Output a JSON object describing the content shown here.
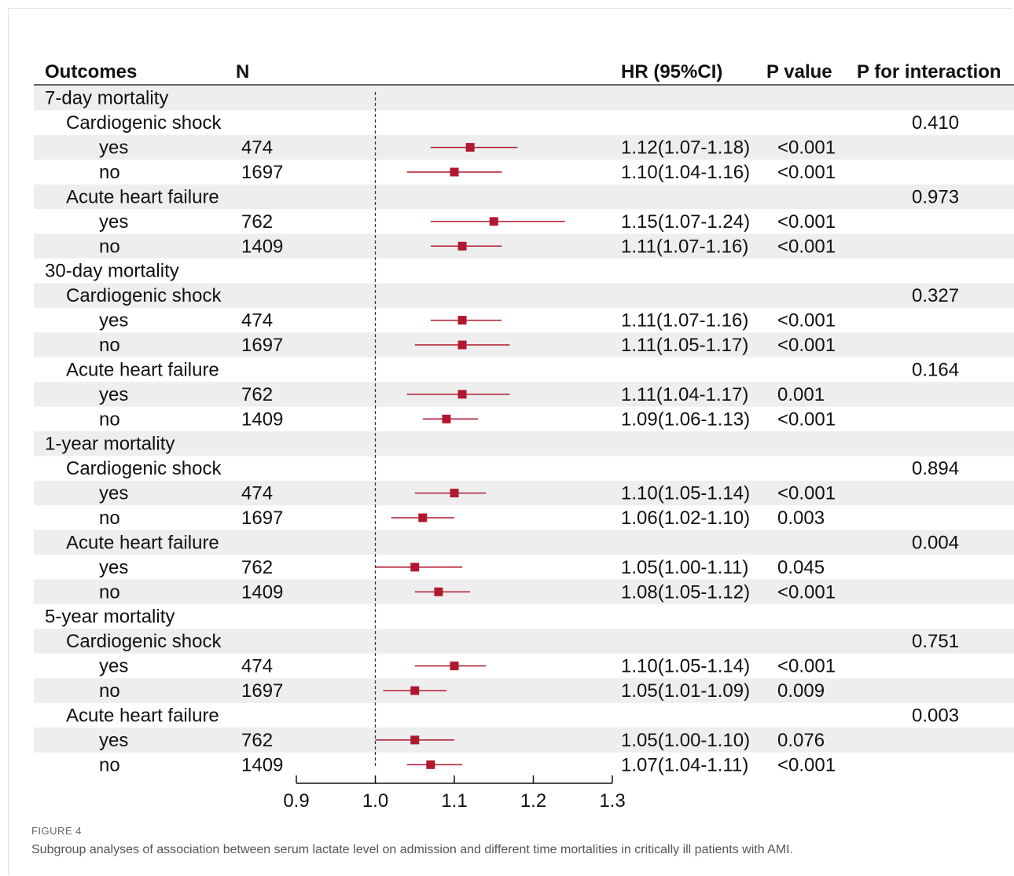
{
  "columns": {
    "outcomes": "Outcomes",
    "n": "N",
    "hr": "HR (95%CI)",
    "p_value": "P value",
    "p_interaction": "P for interaction"
  },
  "caption": {
    "figure_label": "FIGURE 4",
    "text": "Subgroup analyses of association between serum lactate level on admission and different time mortalities in critically ill patients with AMI."
  },
  "colors": {
    "marker": "#b0182f",
    "band": "#eeeeee",
    "reference_line": "#333333"
  },
  "chart_data": {
    "type": "forest",
    "xlim": [
      0.9,
      1.3
    ],
    "xticks": [
      0.9,
      1.0,
      1.1,
      1.2,
      1.3
    ],
    "x_tick_labels": [
      "0.9",
      "1.0",
      "1.1",
      "1.2",
      "1.3"
    ],
    "reference_value": 1.0,
    "rows": [
      {
        "label": "7-day  mortality",
        "level": 0
      },
      {
        "label": "Cardiogenic shock",
        "level": 1,
        "p_interaction": "0.410"
      },
      {
        "label": "yes",
        "level": 2,
        "n": "474",
        "hr": 1.12,
        "lo": 1.07,
        "hi": 1.18,
        "hr_text": "1.12(1.07-1.18)",
        "p": "<0.001"
      },
      {
        "label": "no",
        "level": 2,
        "n": "1697",
        "hr": 1.1,
        "lo": 1.04,
        "hi": 1.16,
        "hr_text": "1.10(1.04-1.16)",
        "p": "<0.001"
      },
      {
        "label": "Acute heart failure",
        "level": 1,
        "p_interaction": "0.973"
      },
      {
        "label": "yes",
        "level": 2,
        "n": "762",
        "hr": 1.15,
        "lo": 1.07,
        "hi": 1.24,
        "hr_text": "1.15(1.07-1.24)",
        "p": "<0.001"
      },
      {
        "label": "no",
        "level": 2,
        "n": "1409",
        "hr": 1.11,
        "lo": 1.07,
        "hi": 1.16,
        "hr_text": "1.11(1.07-1.16)",
        "p": "<0.001"
      },
      {
        "label": "30-day  mortality",
        "level": 0
      },
      {
        "label": "Cardiogenic shock",
        "level": 1,
        "p_interaction": "0.327"
      },
      {
        "label": "yes",
        "level": 2,
        "n": "474",
        "hr": 1.11,
        "lo": 1.07,
        "hi": 1.16,
        "hr_text": "1.11(1.07-1.16)",
        "p": "<0.001"
      },
      {
        "label": "no",
        "level": 2,
        "n": "1697",
        "hr": 1.11,
        "lo": 1.05,
        "hi": 1.17,
        "hr_text": "1.11(1.05-1.17)",
        "p": "<0.001"
      },
      {
        "label": "Acute heart failure",
        "level": 1,
        "p_interaction": "0.164"
      },
      {
        "label": "yes",
        "level": 2,
        "n": "762",
        "hr": 1.11,
        "lo": 1.04,
        "hi": 1.17,
        "hr_text": "1.11(1.04-1.17)",
        "p": "0.001"
      },
      {
        "label": "no",
        "level": 2,
        "n": "1409",
        "hr": 1.09,
        "lo": 1.06,
        "hi": 1.13,
        "hr_text": "1.09(1.06-1.13)",
        "p": "<0.001"
      },
      {
        "label": "1-year mortality",
        "level": 0
      },
      {
        "label": "Cardiogenic shock",
        "level": 1,
        "p_interaction": "0.894"
      },
      {
        "label": "yes",
        "level": 2,
        "n": "474",
        "hr": 1.1,
        "lo": 1.05,
        "hi": 1.14,
        "hr_text": "1.10(1.05-1.14)",
        "p": "<0.001"
      },
      {
        "label": "no",
        "level": 2,
        "n": "1697",
        "hr": 1.06,
        "lo": 1.02,
        "hi": 1.1,
        "hr_text": "1.06(1.02-1.10)",
        "p": "0.003"
      },
      {
        "label": "Acute heart failure",
        "level": 1,
        "p_interaction": "0.004"
      },
      {
        "label": "yes",
        "level": 2,
        "n": "762",
        "hr": 1.05,
        "lo": 1.0,
        "hi": 1.11,
        "hr_text": "1.05(1.00-1.11)",
        "p": "0.045"
      },
      {
        "label": "no",
        "level": 2,
        "n": "1409",
        "hr": 1.08,
        "lo": 1.05,
        "hi": 1.12,
        "hr_text": "1.08(1.05-1.12)",
        "p": "<0.001"
      },
      {
        "label": "5-year mortality",
        "level": 0
      },
      {
        "label": "Cardiogenic shock",
        "level": 1,
        "p_interaction": "0.751"
      },
      {
        "label": "yes",
        "level": 2,
        "n": "474",
        "hr": 1.1,
        "lo": 1.05,
        "hi": 1.14,
        "hr_text": "1.10(1.05-1.14)",
        "p": "<0.001"
      },
      {
        "label": "no",
        "level": 2,
        "n": "1697",
        "hr": 1.05,
        "lo": 1.01,
        "hi": 1.09,
        "hr_text": "1.05(1.01-1.09)",
        "p": "0.009"
      },
      {
        "label": "Acute heart failure",
        "level": 1,
        "p_interaction": "0.003"
      },
      {
        "label": "yes",
        "level": 2,
        "n": "762",
        "hr": 1.05,
        "lo": 1.0,
        "hi": 1.1,
        "hr_text": "1.05(1.00-1.10)",
        "p": "0.076"
      },
      {
        "label": "no",
        "level": 2,
        "n": "1409",
        "hr": 1.07,
        "lo": 1.04,
        "hi": 1.11,
        "hr_text": "1.07(1.04-1.11)",
        "p": "<0.001"
      }
    ]
  }
}
